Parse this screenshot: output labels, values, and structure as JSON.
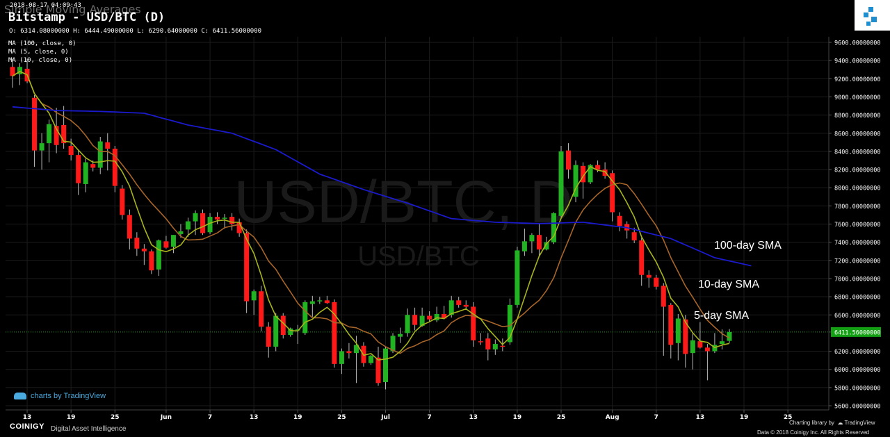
{
  "header": {
    "overlay_title": "Simple Moving Averages",
    "timestamp": "2018-08-17 04:09:43",
    "title": "Bitstamp - USD/BTC (D)",
    "ohlc": "O: 6314.08000000 H: 6444.49000000 L: 6290.64000000 C: 6411.56000000",
    "indicators": [
      "MA (100, close, 0)",
      "MA (5, close, 0)",
      "MA (10, close, 0)"
    ]
  },
  "watermark": {
    "line1": "USD/BTC, D",
    "line2": "USD/BTC"
  },
  "annotations": {
    "sma100": "100-day SMA",
    "sma10": "10-day SMA",
    "sma5": "5-day SMA"
  },
  "footer": {
    "tv_credit": "charts by TradingView",
    "brand": "COINIGY",
    "tagline": "Digital Asset Intelligence",
    "charting_library": "Charting library by",
    "tv_name": "TradingView",
    "copyright": "Data © 2018 Coinigy Inc. All Rights Reserved"
  },
  "colors": {
    "up": "#22b322",
    "down": "#ff1a1a",
    "ma100": "#1a1acc",
    "ma5": "#a8b41c",
    "ma10": "#a8652a",
    "grid": "#1c1c1c",
    "last_price_bg": "#14a014"
  },
  "chart_data": {
    "type": "candlestick",
    "title": "Bitstamp - USD/BTC (D)",
    "ylim": [
      5600,
      9600
    ],
    "y_ticks": [
      "9600.00000000",
      "9400.00000000",
      "9200.00000000",
      "9000.00000000",
      "8800.00000000",
      "8600.00000000",
      "8400.00000000",
      "8200.00000000",
      "8000.00000000",
      "7800.00000000",
      "7600.00000000",
      "7400.00000000",
      "7200.00000000",
      "7000.00000000",
      "6800.00000000",
      "6600.00000000",
      "6411.56000000",
      "6200.00000000",
      "6000.00000000",
      "5800.00000000",
      "5600.00000000"
    ],
    "last_price": 6411.56,
    "last_price_label": "6411.56000000",
    "x_ticks": [
      {
        "label": "13",
        "i": 2
      },
      {
        "label": "19",
        "i": 8
      },
      {
        "label": "25",
        "i": 14
      },
      {
        "label": "Jun",
        "i": 21
      },
      {
        "label": "7",
        "i": 27
      },
      {
        "label": "13",
        "i": 33
      },
      {
        "label": "19",
        "i": 39
      },
      {
        "label": "25",
        "i": 45
      },
      {
        "label": "Jul",
        "i": 51
      },
      {
        "label": "7",
        "i": 57
      },
      {
        "label": "13",
        "i": 63
      },
      {
        "label": "19",
        "i": 69
      },
      {
        "label": "25",
        "i": 75
      },
      {
        "label": "Aug",
        "i": 82
      },
      {
        "label": "7",
        "i": 88
      },
      {
        "label": "13",
        "i": 94
      },
      {
        "label": "19",
        "i": 100
      },
      {
        "label": "25",
        "i": 106
      }
    ],
    "candles": [
      {
        "date": "2018-05-11",
        "o": 9330,
        "h": 9420,
        "l": 9100,
        "c": 9230
      },
      {
        "date": "2018-05-12",
        "o": 9250,
        "h": 9370,
        "l": 9130,
        "c": 9330
      },
      {
        "date": "2018-05-13",
        "o": 9310,
        "h": 9420,
        "l": 9150,
        "c": 9170
      },
      {
        "date": "2018-05-14",
        "o": 8990,
        "h": 9020,
        "l": 8230,
        "c": 8410
      },
      {
        "date": "2018-05-15",
        "o": 8410,
        "h": 8600,
        "l": 8200,
        "c": 8490
      },
      {
        "date": "2018-05-16",
        "o": 8490,
        "h": 8750,
        "l": 8280,
        "c": 8700
      },
      {
        "date": "2018-05-17",
        "o": 8680,
        "h": 8880,
        "l": 8380,
        "c": 8470
      },
      {
        "date": "2018-05-18",
        "o": 8690,
        "h": 8900,
        "l": 8430,
        "c": 8490
      },
      {
        "date": "2018-05-19",
        "o": 8460,
        "h": 8540,
        "l": 8300,
        "c": 8360
      },
      {
        "date": "2018-05-20",
        "o": 8360,
        "h": 8420,
        "l": 7920,
        "c": 8050
      },
      {
        "date": "2018-05-21",
        "o": 8040,
        "h": 8320,
        "l": 7950,
        "c": 8280
      },
      {
        "date": "2018-05-22",
        "o": 8260,
        "h": 8300,
        "l": 8180,
        "c": 8220
      },
      {
        "date": "2018-05-23",
        "o": 8220,
        "h": 8560,
        "l": 8150,
        "c": 8510
      },
      {
        "date": "2018-05-24",
        "o": 8500,
        "h": 8600,
        "l": 8190,
        "c": 8430
      },
      {
        "date": "2018-05-25",
        "o": 8430,
        "h": 8460,
        "l": 7950,
        "c": 8020
      },
      {
        "date": "2018-05-26",
        "o": 7990,
        "h": 8030,
        "l": 7650,
        "c": 7700
      },
      {
        "date": "2018-05-27",
        "o": 7700,
        "h": 7760,
        "l": 7320,
        "c": 7440
      },
      {
        "date": "2018-05-28",
        "o": 7450,
        "h": 7510,
        "l": 7250,
        "c": 7330
      },
      {
        "date": "2018-05-29",
        "o": 7330,
        "h": 7380,
        "l": 7150,
        "c": 7300
      },
      {
        "date": "2018-05-30",
        "o": 7300,
        "h": 7320,
        "l": 7050,
        "c": 7090
      },
      {
        "date": "2018-05-31",
        "o": 7100,
        "h": 7430,
        "l": 7030,
        "c": 7420
      },
      {
        "date": "2018-06-01",
        "o": 7410,
        "h": 7470,
        "l": 7330,
        "c": 7340
      },
      {
        "date": "2018-06-02",
        "o": 7350,
        "h": 7480,
        "l": 7280,
        "c": 7480
      },
      {
        "date": "2018-06-03",
        "o": 7490,
        "h": 7600,
        "l": 7450,
        "c": 7520
      },
      {
        "date": "2018-06-04",
        "o": 7540,
        "h": 7670,
        "l": 7460,
        "c": 7630
      },
      {
        "date": "2018-06-05",
        "o": 7630,
        "h": 7750,
        "l": 7480,
        "c": 7720
      },
      {
        "date": "2018-06-06",
        "o": 7720,
        "h": 7760,
        "l": 7480,
        "c": 7500
      },
      {
        "date": "2018-06-07",
        "o": 7510,
        "h": 7720,
        "l": 7490,
        "c": 7680
      },
      {
        "date": "2018-06-08",
        "o": 7680,
        "h": 7730,
        "l": 7600,
        "c": 7650
      },
      {
        "date": "2018-06-09",
        "o": 7670,
        "h": 7710,
        "l": 7550,
        "c": 7670
      },
      {
        "date": "2018-06-10",
        "o": 7680,
        "h": 7720,
        "l": 7530,
        "c": 7600
      },
      {
        "date": "2018-06-11",
        "o": 7620,
        "h": 7660,
        "l": 7460,
        "c": 7500
      },
      {
        "date": "2018-06-12",
        "o": 7500,
        "h": 7540,
        "l": 6620,
        "c": 6750
      },
      {
        "date": "2018-06-13",
        "o": 6760,
        "h": 6880,
        "l": 6600,
        "c": 6860
      },
      {
        "date": "2018-06-14",
        "o": 6860,
        "h": 6920,
        "l": 6420,
        "c": 6470
      },
      {
        "date": "2018-06-15",
        "o": 6470,
        "h": 6520,
        "l": 6130,
        "c": 6250
      },
      {
        "date": "2018-06-16",
        "o": 6250,
        "h": 6620,
        "l": 6200,
        "c": 6590
      },
      {
        "date": "2018-06-17",
        "o": 6590,
        "h": 6620,
        "l": 6340,
        "c": 6380
      },
      {
        "date": "2018-06-18",
        "o": 6380,
        "h": 6460,
        "l": 6360,
        "c": 6450
      },
      {
        "date": "2018-06-19",
        "o": 6440,
        "h": 6490,
        "l": 6280,
        "c": 6440
      },
      {
        "date": "2018-06-20",
        "o": 6400,
        "h": 6760,
        "l": 6380,
        "c": 6740
      },
      {
        "date": "2018-06-21",
        "o": 6720,
        "h": 6810,
        "l": 6580,
        "c": 6750
      },
      {
        "date": "2018-06-22",
        "o": 6760,
        "h": 6800,
        "l": 6720,
        "c": 6760
      },
      {
        "date": "2018-06-23",
        "o": 6760,
        "h": 6810,
        "l": 6720,
        "c": 6730
      },
      {
        "date": "2018-06-24",
        "o": 6740,
        "h": 6770,
        "l": 6020,
        "c": 6060
      },
      {
        "date": "2018-06-25",
        "o": 6060,
        "h": 6230,
        "l": 5950,
        "c": 6200
      },
      {
        "date": "2018-06-26",
        "o": 6200,
        "h": 6290,
        "l": 6120,
        "c": 6180
      },
      {
        "date": "2018-06-27",
        "o": 6180,
        "h": 6370,
        "l": 5850,
        "c": 6270
      },
      {
        "date": "2018-06-28",
        "o": 6260,
        "h": 6300,
        "l": 6030,
        "c": 6070
      },
      {
        "date": "2018-06-29",
        "o": 6070,
        "h": 6160,
        "l": 6050,
        "c": 6150
      },
      {
        "date": "2018-06-30",
        "o": 6130,
        "h": 6250,
        "l": 5820,
        "c": 5850
      },
      {
        "date": "2018-07-01",
        "o": 5860,
        "h": 6250,
        "l": 5780,
        "c": 6230
      },
      {
        "date": "2018-07-02",
        "o": 6200,
        "h": 6400,
        "l": 6180,
        "c": 6370
      },
      {
        "date": "2018-07-03",
        "o": 6360,
        "h": 6460,
        "l": 6290,
        "c": 6390
      },
      {
        "date": "2018-07-04",
        "o": 6400,
        "h": 6670,
        "l": 6360,
        "c": 6600
      },
      {
        "date": "2018-07-05",
        "o": 6600,
        "h": 6680,
        "l": 6430,
        "c": 6490
      },
      {
        "date": "2018-07-06",
        "o": 6480,
        "h": 6680,
        "l": 6470,
        "c": 6590
      },
      {
        "date": "2018-07-07",
        "o": 6590,
        "h": 6640,
        "l": 6520,
        "c": 6550
      },
      {
        "date": "2018-07-08",
        "o": 6540,
        "h": 6690,
        "l": 6520,
        "c": 6610
      },
      {
        "date": "2018-07-09",
        "o": 6610,
        "h": 6700,
        "l": 6550,
        "c": 6560
      },
      {
        "date": "2018-07-10",
        "o": 6600,
        "h": 6810,
        "l": 6570,
        "c": 6760
      },
      {
        "date": "2018-07-11",
        "o": 6760,
        "h": 6800,
        "l": 6680,
        "c": 6710
      },
      {
        "date": "2018-07-12",
        "o": 6710,
        "h": 6760,
        "l": 6660,
        "c": 6690
      },
      {
        "date": "2018-07-13",
        "o": 6690,
        "h": 6740,
        "l": 6250,
        "c": 6320
      },
      {
        "date": "2018-07-14",
        "o": 6310,
        "h": 6400,
        "l": 6270,
        "c": 6300
      },
      {
        "date": "2018-07-15",
        "o": 6340,
        "h": 6400,
        "l": 6100,
        "c": 6220
      },
      {
        "date": "2018-07-16",
        "o": 6220,
        "h": 6330,
        "l": 6160,
        "c": 6280
      },
      {
        "date": "2018-07-17",
        "o": 6260,
        "h": 6340,
        "l": 6200,
        "c": 6250
      },
      {
        "date": "2018-07-18",
        "o": 6300,
        "h": 6780,
        "l": 6270,
        "c": 6710
      },
      {
        "date": "2018-07-19",
        "o": 6710,
        "h": 7350,
        "l": 6680,
        "c": 7310
      },
      {
        "date": "2018-07-20",
        "o": 7300,
        "h": 7550,
        "l": 7250,
        "c": 7410
      },
      {
        "date": "2018-07-21",
        "o": 7410,
        "h": 7500,
        "l": 7280,
        "c": 7480
      },
      {
        "date": "2018-07-22",
        "o": 7480,
        "h": 7600,
        "l": 7250,
        "c": 7320
      },
      {
        "date": "2018-07-23",
        "o": 7320,
        "h": 7460,
        "l": 7310,
        "c": 7400
      },
      {
        "date": "2018-07-24",
        "o": 7400,
        "h": 7730,
        "l": 7380,
        "c": 7720
      },
      {
        "date": "2018-07-25",
        "o": 7690,
        "h": 8460,
        "l": 7660,
        "c": 8400
      },
      {
        "date": "2018-07-26",
        "o": 8410,
        "h": 8490,
        "l": 8100,
        "c": 8200
      },
      {
        "date": "2018-07-27",
        "o": 7900,
        "h": 8300,
        "l": 7840,
        "c": 8250
      },
      {
        "date": "2018-07-28",
        "o": 8240,
        "h": 8280,
        "l": 7880,
        "c": 8060
      },
      {
        "date": "2018-07-29",
        "o": 8060,
        "h": 8260,
        "l": 8040,
        "c": 8250
      },
      {
        "date": "2018-07-30",
        "o": 8250,
        "h": 8300,
        "l": 8170,
        "c": 8200
      },
      {
        "date": "2018-07-31",
        "o": 8200,
        "h": 8280,
        "l": 8100,
        "c": 8130
      },
      {
        "date": "2018-08-01",
        "o": 8160,
        "h": 8190,
        "l": 7630,
        "c": 7730
      },
      {
        "date": "2018-08-02",
        "o": 7690,
        "h": 7730,
        "l": 7520,
        "c": 7580
      },
      {
        "date": "2018-08-03",
        "o": 7600,
        "h": 7630,
        "l": 7440,
        "c": 7530
      },
      {
        "date": "2018-08-04",
        "o": 7510,
        "h": 7560,
        "l": 7390,
        "c": 7420
      },
      {
        "date": "2018-08-05",
        "o": 7420,
        "h": 7450,
        "l": 6920,
        "c": 7040
      },
      {
        "date": "2018-08-06",
        "o": 7040,
        "h": 7090,
        "l": 6900,
        "c": 7010
      },
      {
        "date": "2018-08-07",
        "o": 7010,
        "h": 7040,
        "l": 6880,
        "c": 6910
      },
      {
        "date": "2018-08-08",
        "o": 6920,
        "h": 6950,
        "l": 6150,
        "c": 6690
      },
      {
        "date": "2018-08-09",
        "o": 6710,
        "h": 6730,
        "l": 6120,
        "c": 6270
      },
      {
        "date": "2018-08-10",
        "o": 6290,
        "h": 6610,
        "l": 6100,
        "c": 6560
      },
      {
        "date": "2018-08-11",
        "o": 6550,
        "h": 6600,
        "l": 6020,
        "c": 6170
      },
      {
        "date": "2018-08-12",
        "o": 6180,
        "h": 6410,
        "l": 6000,
        "c": 6320
      },
      {
        "date": "2018-08-13",
        "o": 6310,
        "h": 6520,
        "l": 6230,
        "c": 6240
      },
      {
        "date": "2018-08-14",
        "o": 6240,
        "h": 6280,
        "l": 5880,
        "c": 6200
      },
      {
        "date": "2018-08-15",
        "o": 6200,
        "h": 6400,
        "l": 6180,
        "c": 6270
      },
      {
        "date": "2018-08-16",
        "o": 6280,
        "h": 6440,
        "l": 6220,
        "c": 6310
      },
      {
        "date": "2018-08-17",
        "o": 6314.08,
        "h": 6444.49,
        "l": 6290.64,
        "c": 6411.56
      }
    ],
    "series": [
      {
        "name": "MA (100, close, 0)",
        "label": "100-day SMA",
        "values": [
          [
            0,
            8890
          ],
          [
            6,
            8850
          ],
          [
            12,
            8840
          ],
          [
            18,
            8820
          ],
          [
            24,
            8690
          ],
          [
            30,
            8600
          ],
          [
            36,
            8420
          ],
          [
            42,
            8150
          ],
          [
            48,
            7980
          ],
          [
            54,
            7830
          ],
          [
            60,
            7660
          ],
          [
            66,
            7620
          ],
          [
            72,
            7605
          ],
          [
            78,
            7620
          ],
          [
            84,
            7560
          ],
          [
            90,
            7440
          ],
          [
            96,
            7230
          ],
          [
            101,
            7140
          ]
        ]
      },
      {
        "name": "MA (5, close, 0)",
        "label": "5-day SMA",
        "values": []
      },
      {
        "name": "MA (10, close, 0)",
        "label": "10-day SMA",
        "values": []
      }
    ]
  }
}
